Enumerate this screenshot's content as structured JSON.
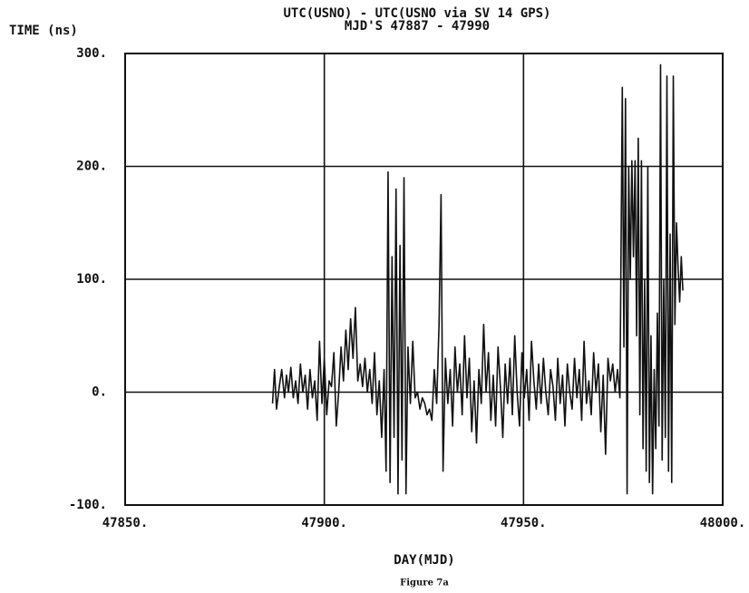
{
  "chart_data": {
    "type": "line",
    "title": "UTC(USNO) -  UTC(USNO via SV 14 GPS)",
    "subtitle": "MJD'S 47887 - 47990",
    "y_label": "TIME (ns)",
    "x_label": "DAY(MJD)",
    "caption": "Figure 7a",
    "xlim": [
      47850,
      48000
    ],
    "ylim": [
      -100,
      300
    ],
    "xticks": [
      {
        "value": 47850,
        "label": "47850."
      },
      {
        "value": 47900,
        "label": "47900."
      },
      {
        "value": 47950,
        "label": "47950."
      },
      {
        "value": 48000,
        "label": "48000."
      }
    ],
    "yticks": [
      {
        "value": -100,
        "label": "-100."
      },
      {
        "value": 0,
        "label": "0."
      },
      {
        "value": 100,
        "label": "100."
      },
      {
        "value": 200,
        "label": "200."
      },
      {
        "value": 300,
        "label": "300."
      }
    ],
    "grid": true,
    "color": "#111111",
    "x": [
      47887,
      47887.5,
      47888,
      47888.7,
      47889.3,
      47890,
      47890.5,
      47891,
      47891.6,
      47892.2,
      47892.8,
      47893.4,
      47894,
      47894.6,
      47895.2,
      47895.8,
      47896.4,
      47897,
      47897.6,
      47898.2,
      47898.8,
      47899.4,
      47900,
      47900.6,
      47901.2,
      47901.8,
      47902.4,
      47903,
      47903.6,
      47904.2,
      47904.8,
      47905.4,
      47906,
      47906.6,
      47907.2,
      47907.8,
      47908.4,
      47909,
      47909.6,
      47910.2,
      47910.8,
      47911.4,
      47912,
      47912.6,
      47913.2,
      47913.8,
      47914.4,
      47915,
      47915.5,
      47916,
      47916.5,
      47917,
      47917.5,
      47918,
      47918.5,
      47919,
      47919.5,
      47920,
      47920.5,
      47921,
      47921.6,
      47922.2,
      47922.8,
      47923.4,
      47924,
      47924.6,
      47925.2,
      47925.8,
      47926.4,
      47927,
      47927.6,
      47928.2,
      47928.8,
      47929.3,
      47929.8,
      47930.4,
      47931,
      47931.6,
      47932.2,
      47932.8,
      47933.4,
      47934,
      47934.6,
      47935.2,
      47935.8,
      47936.4,
      47937,
      47937.6,
      47938.2,
      47938.8,
      47939.4,
      47940,
      47940.6,
      47941.2,
      47941.8,
      47942.4,
      47943,
      47943.6,
      47944.2,
      47944.8,
      47945.4,
      47946,
      47946.6,
      47947.2,
      47947.8,
      47948.4,
      47949,
      47949.6,
      47950.2,
      47950.8,
      47951.4,
      47952,
      47952.6,
      47953.2,
      47953.8,
      47954.4,
      47955,
      47955.6,
      47956.2,
      47956.8,
      47957.4,
      47958,
      47958.6,
      47959.2,
      47959.8,
      47960.4,
      47961,
      47961.6,
      47962.2,
      47962.8,
      47963.4,
      47964,
      47964.6,
      47965.2,
      47965.8,
      47966.4,
      47967,
      47967.6,
      47968.2,
      47968.8,
      47969.4,
      47970,
      47970.6,
      47971.2,
      47971.8,
      47972.4,
      47973,
      47973.6,
      47974.2,
      47974.8,
      47975.2,
      47975.6,
      47976,
      47976.4,
      47976.8,
      47977.2,
      47977.6,
      47978,
      47978.4,
      47978.8,
      47979.2,
      47979.6,
      47980,
      47980.4,
      47980.8,
      47981.2,
      47981.6,
      47982,
      47982.4,
      47982.8,
      47983.2,
      47983.6,
      47984,
      47984.4,
      47984.8,
      47985.2,
      47985.6,
      47986,
      47986.4,
      47986.8,
      47987.2,
      47987.6,
      47988,
      47988.4,
      47988.8,
      47989.2,
      47989.6,
      47990
    ],
    "values": [
      -10,
      20,
      -15,
      5,
      20,
      -5,
      15,
      0,
      22,
      -5,
      10,
      -10,
      25,
      0,
      15,
      -15,
      20,
      -5,
      10,
      -25,
      45,
      -10,
      30,
      -20,
      10,
      5,
      35,
      -30,
      0,
      40,
      10,
      55,
      20,
      65,
      30,
      75,
      10,
      25,
      5,
      30,
      0,
      20,
      -10,
      35,
      -20,
      10,
      -40,
      20,
      -70,
      195,
      -80,
      120,
      -40,
      180,
      -90,
      130,
      -60,
      190,
      -90,
      40,
      -10,
      45,
      -5,
      0,
      -15,
      -5,
      -10,
      -20,
      -15,
      -25,
      20,
      -10,
      60,
      175,
      -70,
      30,
      -10,
      20,
      -30,
      40,
      0,
      25,
      -20,
      50,
      -5,
      30,
      -35,
      10,
      -45,
      20,
      -10,
      60,
      0,
      35,
      -25,
      15,
      -30,
      40,
      5,
      -40,
      25,
      -10,
      30,
      -20,
      50,
      0,
      -30,
      35,
      -5,
      20,
      -25,
      45,
      10,
      -15,
      25,
      -10,
      30,
      0,
      -20,
      20,
      5,
      -25,
      30,
      -10,
      15,
      -30,
      25,
      0,
      -15,
      30,
      -5,
      20,
      -25,
      45,
      -10,
      10,
      -20,
      35,
      0,
      25,
      -35,
      15,
      -55,
      30,
      10,
      25,
      0,
      20,
      -5,
      270,
      40,
      260,
      -90,
      200,
      100,
      205,
      120,
      205,
      50,
      225,
      -20,
      205,
      -50,
      100,
      -70,
      200,
      -80,
      50,
      -90,
      20,
      -50,
      70,
      -30,
      290,
      -60,
      100,
      -40,
      280,
      -70,
      140,
      -80,
      280,
      60,
      150,
      110,
      80,
      120,
      90
    ]
  }
}
